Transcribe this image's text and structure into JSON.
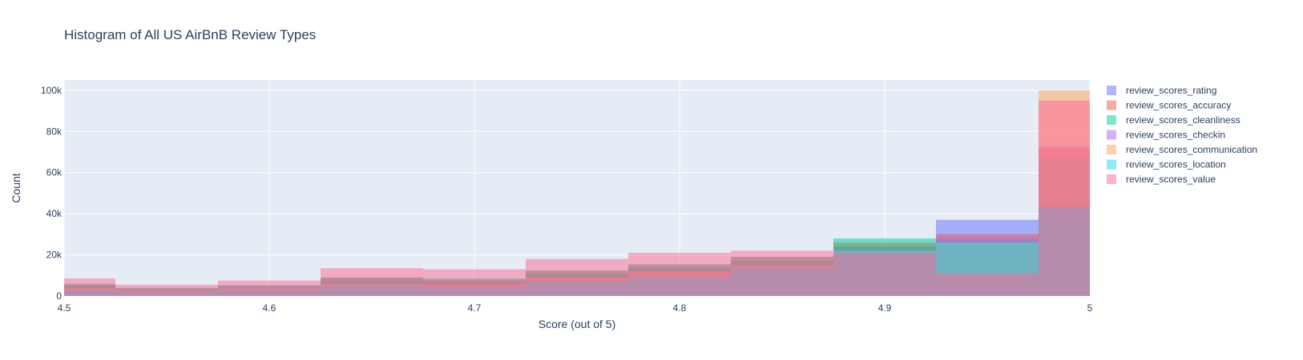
{
  "chart_data": {
    "type": "histogram",
    "title": "Histogram of All US AirBnB Review Types",
    "xlabel": "Score (out of 5)",
    "ylabel": "Count",
    "xlim": [
      4.5,
      5.0
    ],
    "ylim": [
      0,
      105000
    ],
    "grid": true,
    "legend_position": "right",
    "x_ticks": [
      {
        "value": 4.5,
        "label": "4.5"
      },
      {
        "value": 4.6,
        "label": "4.6"
      },
      {
        "value": 4.7,
        "label": "4.7"
      },
      {
        "value": 4.8,
        "label": "4.8"
      },
      {
        "value": 4.9,
        "label": "4.9"
      },
      {
        "value": 5.0,
        "label": "5"
      }
    ],
    "y_ticks": [
      {
        "value": 0,
        "label": "0"
      },
      {
        "value": 20000,
        "label": "20k"
      },
      {
        "value": 40000,
        "label": "40k"
      },
      {
        "value": 60000,
        "label": "60k"
      },
      {
        "value": 80000,
        "label": "80k"
      },
      {
        "value": 100000,
        "label": "100k"
      }
    ],
    "bin_edges": [
      4.5,
      4.525,
      4.575,
      4.625,
      4.675,
      4.725,
      4.775,
      4.825,
      4.875,
      4.925,
      4.975,
      5.0
    ],
    "series": [
      {
        "name": "review_scores_rating",
        "color": "#636efa",
        "values": [
          5000,
          3500,
          4500,
          8000,
          7000,
          11000,
          14000,
          17000,
          24000,
          37000,
          44000
        ]
      },
      {
        "name": "review_scores_accuracy",
        "color": "#ef553b",
        "values": [
          5500,
          3800,
          5000,
          9000,
          8000,
          12000,
          15000,
          19000,
          26000,
          30000,
          72000
        ]
      },
      {
        "name": "review_scores_cleanliness",
        "color": "#00cc96",
        "values": [
          6000,
          4000,
          5200,
          9000,
          8500,
          12500,
          15500,
          19000,
          28000,
          27000,
          67000
        ]
      },
      {
        "name": "review_scores_checkin",
        "color": "#ab63fa",
        "values": [
          4000,
          3000,
          4000,
          6000,
          6000,
          9000,
          12000,
          15000,
          22000,
          28000,
          73000
        ]
      },
      {
        "name": "review_scores_communication",
        "color": "#ffa15a",
        "values": [
          4000,
          3000,
          4000,
          6000,
          6000,
          9000,
          12000,
          15000,
          22000,
          26000,
          100000
        ]
      },
      {
        "name": "review_scores_location",
        "color": "#19d3f3",
        "values": [
          3000,
          2500,
          3500,
          5000,
          4500,
          7000,
          9000,
          14000,
          22000,
          26000,
          43000
        ]
      },
      {
        "name": "review_scores_value",
        "color": "#ff6692",
        "values": [
          8500,
          5500,
          7500,
          13500,
          13000,
          18000,
          21000,
          22000,
          21000,
          11000,
          95000
        ]
      }
    ]
  }
}
